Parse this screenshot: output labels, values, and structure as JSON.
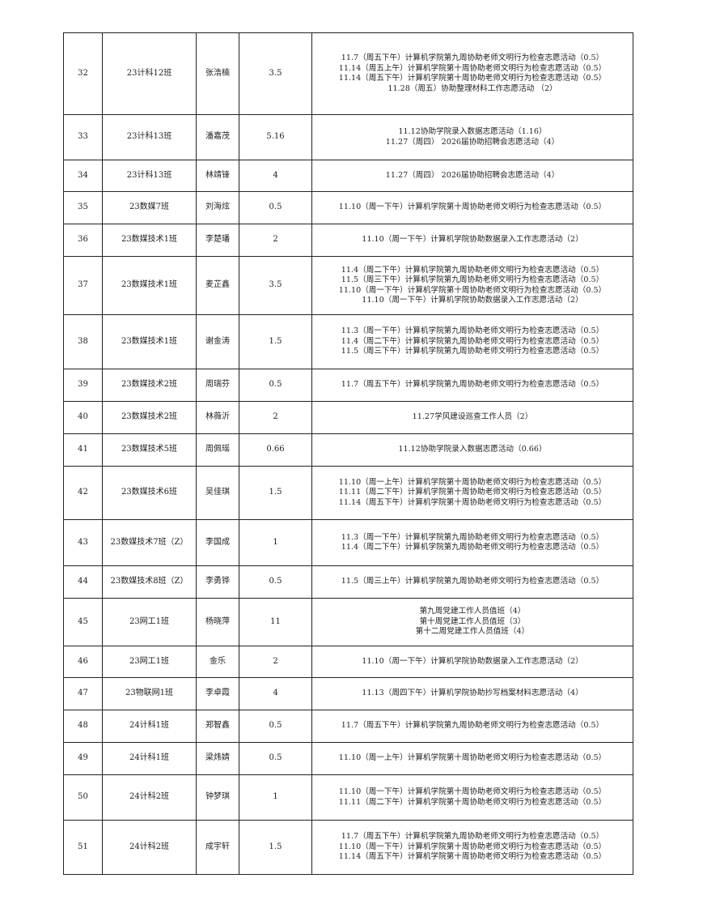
{
  "rows": [
    {
      "no": "32",
      "class": "23计科12班",
      "name": "张浩楠",
      "hours": "3.5",
      "activities": [
        "11.7（周五下午）计算机学院第九周协助老师文明行为检查志愿活动（0.5）",
        "11.14（周五上午）计算机学院第十周协助老师文明行为检查志愿活动（0.5）",
        "11.14（周五下午）计算机学院第十周协助老师文明行为检查志愿活动（0.5）",
        "11.28（周五）协助整理材料工作志愿活动 （2）"
      ]
    },
    {
      "no": "33",
      "class": "23计科13班",
      "name": "潘嘉茂",
      "hours": "5.16",
      "activities": [
        "11.12协助学院录入数据志愿活动（1.16）",
        "11.27（周四） 2026届协助招聘会志愿活动（4）"
      ]
    },
    {
      "no": "34",
      "class": "23计科13班",
      "name": "林靖锋",
      "hours": "4",
      "activities": [
        "11.27（周四） 2026届协助招聘会志愿活动（4）"
      ]
    },
    {
      "no": "35",
      "class": "23数媒7班",
      "name": "刘海炫",
      "hours": "0.5",
      "activities": [
        "11.10（周一下午）计算机学院第十周协助老师文明行为检查志愿活动（0.5）"
      ]
    },
    {
      "no": "36",
      "class": "23数媒技术1班",
      "name": "李楚璠",
      "hours": "2",
      "activities": [
        "11.10（周一下午）计算机学院协助数据录入工作志愿活动（2）"
      ]
    },
    {
      "no": "37",
      "class": "23数媒技术1班",
      "name": "麦芷鑫",
      "hours": "3.5",
      "activities": [
        "11.4（周二下午）计算机学院第九周协助老师文明行为检查志愿活动（0.5）",
        "11.5（周三下午）计算机学院第九周协助老师文明行为检查志愿活动（0.5）",
        "11.10（周一下午）计算机学院第十周协助老师文明行为检查志愿活动（0.5）",
        "11.10（周一下午）计算机学院协助数据录入工作志愿活动（2）"
      ]
    },
    {
      "no": "38",
      "class": "23数媒技术1班",
      "name": "谢金涛",
      "hours": "1.5",
      "activities": [
        "11.3（周一下午）计算机学院第九周协助老师文明行为检查志愿活动（0.5）",
        "11.4（周二下午）计算机学院第九周协助老师文明行为检查志愿活动（0.5）",
        "11.5（周三下午）计算机学院第九周协助老师文明行为检查志愿活动（0.5）"
      ]
    },
    {
      "no": "39",
      "class": "23数媒技术2班",
      "name": "周瑞芬",
      "hours": "0.5",
      "activities": [
        "11.7（周五下午）计算机学院第九周协助老师文明行为检查志愿活动（0.5）"
      ]
    },
    {
      "no": "40",
      "class": "23数媒技术2班",
      "name": "林薇沂",
      "hours": "2",
      "activities": [
        "11.27学风建设巡查工作人员（2）"
      ]
    },
    {
      "no": "41",
      "class": "23数媒技术5班",
      "name": "周佩瑶",
      "hours": "0.66",
      "activities": [
        "11.12协助学院录入数据志愿活动（0.66）"
      ]
    },
    {
      "no": "42",
      "class": "23数媒技术6班",
      "name": "吴佳琪",
      "hours": "1.5",
      "activities": [
        "11.10（周一上午）计算机学院第十周协助老师文明行为检查志愿活动（0.5）",
        "11.11（周二下午）计算机学院第十周协助老师文明行为检查志愿活动（0.5）",
        "11.14（周五下午）计算机学院第十周协助老师文明行为检查志愿活动（0.5）"
      ]
    },
    {
      "no": "43",
      "class": "23数媒技术7班（Z）",
      "name": "李国成",
      "hours": "1",
      "activities": [
        "11.3（周一下午）计算机学院第九周协助老师文明行为检查志愿活动（0.5）",
        "11.4（周二下午）计算机学院第九周协助老师文明行为检查志愿活动（0.5）"
      ]
    },
    {
      "no": "44",
      "class": "23数媒技术8班（Z）",
      "name": "李勇铧",
      "hours": "0.5",
      "activities": [
        "11.5（周三上午）计算机学院第九周协助老师文明行为检查志愿活动（0.5）"
      ]
    },
    {
      "no": "45",
      "class": "23网工1班",
      "name": "杨晓萍",
      "hours": "11",
      "activities": [
        "第九周党建工作人员值班（4）",
        "第十周党建工作人员值班（3）",
        "第十二周党建工作人员值班（4）"
      ]
    },
    {
      "no": "46",
      "class": "23网工1班",
      "name": "金乐",
      "hours": "2",
      "activities": [
        "11.10（周一下午）计算机学院协助数据录入工作志愿活动（2）"
      ]
    },
    {
      "no": "47",
      "class": "23物联网1班",
      "name": "李卓霞",
      "hours": "4",
      "activities": [
        "11.13（周四下午）计算机学院协助抄写档案材料志愿活动（4）"
      ]
    },
    {
      "no": "48",
      "class": "24计科1班",
      "name": "郑智鑫",
      "hours": "0.5",
      "activities": [
        "11.7（周五下午）计算机学院第九周协助老师文明行为检查志愿活动（0.5）"
      ]
    },
    {
      "no": "49",
      "class": "24计科1班",
      "name": "梁炜婧",
      "hours": "0.5",
      "activities": [
        "11.10（周一上午）计算机学院第十周协助老师文明行为检查志愿活动（0.5）"
      ]
    },
    {
      "no": "50",
      "class": "24计科2班",
      "name": "钟梦琪",
      "hours": "1",
      "activities": [
        "11.10（周一下午）计算机学院第十周协助老师文明行为检查志愿活动（0.5）",
        "11.11（周二下午）计算机学院第十周协助老师文明行为检查志愿活动（0.5）"
      ]
    },
    {
      "no": "51",
      "class": "24计科2班",
      "name": "成宇轩",
      "hours": "1.5",
      "activities": [
        "11.7（周五下午）计算机学院第九周协助老师文明行为检查志愿活动（0.5）",
        "11.10（周一下午）计算机学院第十周协助老师文明行为检查志愿活动（0.5）",
        "11.14（周五下午）计算机学院第十周协助老师文明行为检查志愿活动（0.5）"
      ]
    }
  ]
}
